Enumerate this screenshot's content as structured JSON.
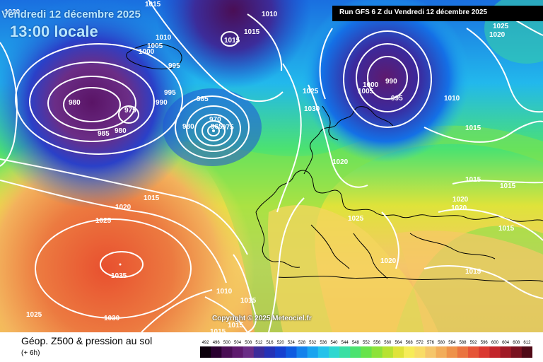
{
  "header": {
    "date_line": "Vendredi 12 décembre 2025",
    "local_time": "13:00 locale",
    "run_label": "Run GFS 6 Z du Vendredi 12 décembre 2025"
  },
  "footer": {
    "title": "Géop. Z500 & pression au sol",
    "subtitle": "(+ 6h)",
    "copyright": "Copyright © 2025 Meteociel.fr"
  },
  "scale": {
    "values": [
      "492",
      "496",
      "500",
      "504",
      "508",
      "512",
      "516",
      "520",
      "524",
      "528",
      "532",
      "536",
      "540",
      "544",
      "548",
      "552",
      "556",
      "560",
      "564",
      "568",
      "572",
      "576",
      "580",
      "584",
      "588",
      "592",
      "596",
      "600",
      "604",
      "608",
      "612"
    ],
    "colors": [
      "#0c000c",
      "#2a0030",
      "#4a0e55",
      "#5e1a6e",
      "#6a2d86",
      "#3c2c9a",
      "#2532b6",
      "#1640cf",
      "#0f5be0",
      "#1482ec",
      "#1aa4ef",
      "#25c2ea",
      "#2ed7d0",
      "#3adfa3",
      "#4ce270",
      "#67e34b",
      "#8de23a",
      "#b7e232",
      "#dfe33a",
      "#f6ec58",
      "#f8dc66",
      "#f5c66a",
      "#f2ad5a",
      "#ee924a",
      "#ea7440",
      "#e55437",
      "#da3830",
      "#c2252b",
      "#a01a26",
      "#7a1220",
      "#500a17"
    ]
  },
  "pressure_labels": [
    {
      "text": "1015",
      "near": "top-center"
    },
    {
      "text": "1010",
      "near": "top-center"
    },
    {
      "text": "1015",
      "near": "top-center"
    },
    {
      "text": "1015",
      "near": "north-atlantic"
    },
    {
      "text": "1010",
      "near": "greenland"
    },
    {
      "text": "1005",
      "near": "greenland"
    },
    {
      "text": "1000",
      "near": "greenland"
    },
    {
      "text": "995",
      "near": "greenland"
    },
    {
      "text": "995",
      "near": "north-atlantic"
    },
    {
      "text": "990",
      "near": "north-atlantic"
    },
    {
      "text": "980",
      "near": "north-atlantic-low"
    },
    {
      "text": "975",
      "near": "north-atlantic-low"
    },
    {
      "text": "980",
      "near": "north-atlantic-low"
    },
    {
      "text": "985",
      "near": "north-atlantic-low"
    },
    {
      "text": "985",
      "near": "iceland-low"
    },
    {
      "text": "980",
      "near": "iceland-low"
    },
    {
      "text": "970",
      "near": "iceland-low"
    },
    {
      "text": "965",
      "near": "iceland-low"
    },
    {
      "text": "975",
      "near": "iceland-low"
    },
    {
      "text": "1025",
      "near": "scandinavia"
    },
    {
      "text": "1030",
      "near": "scandinavia"
    },
    {
      "text": "1000",
      "near": "barents-low"
    },
    {
      "text": "990",
      "near": "barents-low"
    },
    {
      "text": "1005",
      "near": "barents-low"
    },
    {
      "text": "995",
      "near": "barents-low"
    },
    {
      "text": "1010",
      "near": "russia"
    },
    {
      "text": "1025",
      "near": "top-right"
    },
    {
      "text": "1020",
      "near": "top-right"
    },
    {
      "text": "1015",
      "near": "russia"
    },
    {
      "text": "1020",
      "near": "central-europe"
    },
    {
      "text": "1015",
      "near": "east-europe"
    },
    {
      "text": "1015",
      "near": "east-europe"
    },
    {
      "text": "1020",
      "near": "east-europe"
    },
    {
      "text": "1020",
      "near": "east-europe"
    },
    {
      "text": "1015",
      "near": "turkey"
    },
    {
      "text": "1025",
      "near": "alps"
    },
    {
      "text": "1020",
      "near": "balkans"
    },
    {
      "text": "1015",
      "near": "middle-east"
    },
    {
      "text": "1015",
      "near": "mid-atlantic"
    },
    {
      "text": "1020",
      "near": "mid-atlantic"
    },
    {
      "text": "1025",
      "near": "azores"
    },
    {
      "text": "1035",
      "near": "azores-high"
    },
    {
      "text": "1025",
      "near": "south-atlantic"
    },
    {
      "text": "1030",
      "near": "south-atlantic"
    },
    {
      "text": "1010",
      "near": "north-africa"
    },
    {
      "text": "1015",
      "near": "north-africa"
    },
    {
      "text": "1015",
      "near": "north-africa"
    },
    {
      "text": "1015",
      "near": "sahara"
    },
    {
      "text": "1020",
      "near": "top-left"
    }
  ]
}
